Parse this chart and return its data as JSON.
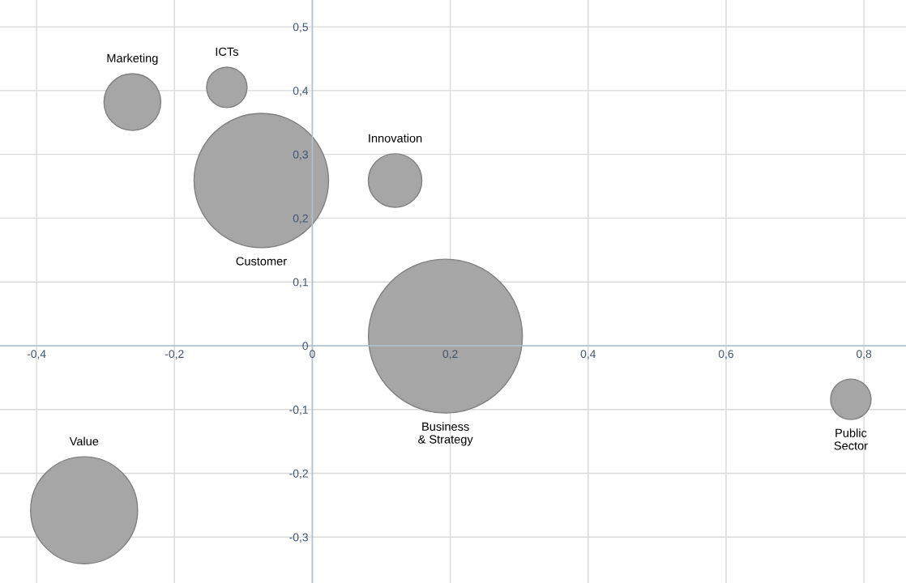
{
  "chart_data": {
    "type": "bubble",
    "color": "#a6a6a6",
    "series": [
      {
        "name": "Marketing",
        "x": [
          -0.261
        ],
        "values": [
          0.382
        ],
        "sizes": [
          0.136
        ]
      },
      {
        "name": "ICTs",
        "x": [
          -0.124
        ],
        "values": [
          0.405
        ],
        "sizes": [
          0.069
        ]
      },
      {
        "name": "Customer",
        "x": [
          -0.074
        ],
        "values": [
          0.259
        ],
        "sizes": [
          0.763
        ]
      },
      {
        "name": "Innovation",
        "x": [
          0.12
        ],
        "values": [
          0.259
        ],
        "sizes": [
          0.121
        ]
      },
      {
        "name": "Business\n& Strategy",
        "x": [
          0.193
        ],
        "values": [
          0.015
        ],
        "sizes": [
          1
        ]
      },
      {
        "name": "Public\nSector",
        "x": [
          0.781
        ],
        "values": [
          -0.084
        ],
        "sizes": [
          0.069
        ]
      },
      {
        "name": "Value",
        "x": [
          -0.331
        ],
        "values": [
          -0.258
        ],
        "sizes": [
          0.483
        ]
      }
    ],
    "xlim": [
      -0.453,
      0.861
    ],
    "ylim": [
      -0.372,
      0.542
    ],
    "xticks": [
      {
        "value": -0.4,
        "label": "-0,4"
      },
      {
        "value": -0.2,
        "label": "-0,2"
      },
      0,
      {
        "value": 0.2,
        "label": "0,2"
      },
      {
        "value": 0.4,
        "label": "0,4"
      },
      {
        "value": 0.6,
        "label": "0,6"
      },
      {
        "value": 0.8,
        "label": "0,8"
      }
    ],
    "yticks": [
      {
        "value": -0.3,
        "label": "-0,3"
      },
      {
        "value": -0.2,
        "label": "-0,2"
      },
      {
        "value": -0.1,
        "label": "-0,1"
      },
      0,
      {
        "value": 0.1,
        "label": "0,1"
      },
      {
        "value": 0.2,
        "label": "0,2"
      },
      {
        "value": 0.3,
        "label": "0,3"
      },
      {
        "value": 0.4,
        "label": "0,4"
      },
      {
        "value": 0.5,
        "label": "0,5"
      }
    ],
    "grid": true
  }
}
